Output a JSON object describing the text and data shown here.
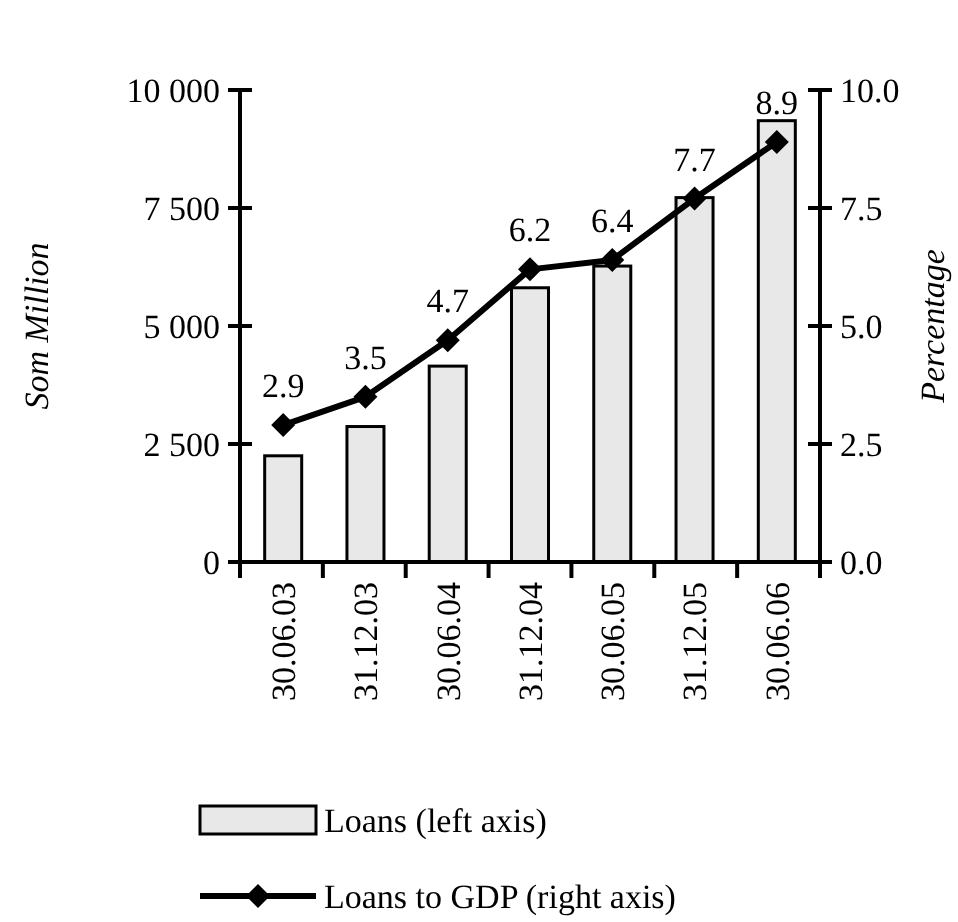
{
  "chart_data": {
    "type": "bar",
    "categories": [
      "30.06.03",
      "31.12.03",
      "30.06.04",
      "31.12.04",
      "30.06.05",
      "31.12.05",
      "30.06.06"
    ],
    "ylabel": "Som Million",
    "y2label": "Percentage",
    "ylim": [
      0,
      10000
    ],
    "yticks": [
      0,
      {
        "value": 2500,
        "label": "2 500"
      },
      {
        "value": 5000,
        "label": "5 000"
      },
      {
        "value": 7500,
        "label": "7 500"
      },
      {
        "value": 10000,
        "label": "10 000"
      }
    ],
    "y2lim": [
      0,
      10
    ],
    "y2ticks": [
      {
        "value": 0,
        "label": "0.0"
      },
      {
        "value": 2.5,
        "label": "2.5"
      },
      {
        "value": 5,
        "label": "5.0"
      },
      {
        "value": 7.5,
        "label": "7.5"
      },
      {
        "value": 10,
        "label": "10.0"
      }
    ],
    "series": [
      {
        "name": "Loans (left axis)",
        "color": "#e8e8e8",
        "values": [
          2250,
          2870,
          4150,
          5810,
          6270,
          7720,
          9350
        ]
      },
      {
        "name": "Loans to GDP (right axis)",
        "type": "line",
        "axis": "y2",
        "color": "#000000",
        "marker": "diamond",
        "data_labels": true,
        "values": [
          2.9,
          3.5,
          4.7,
          6.2,
          6.4,
          7.7,
          8.9
        ]
      }
    ],
    "legend": "bottom",
    "grid": false
  }
}
